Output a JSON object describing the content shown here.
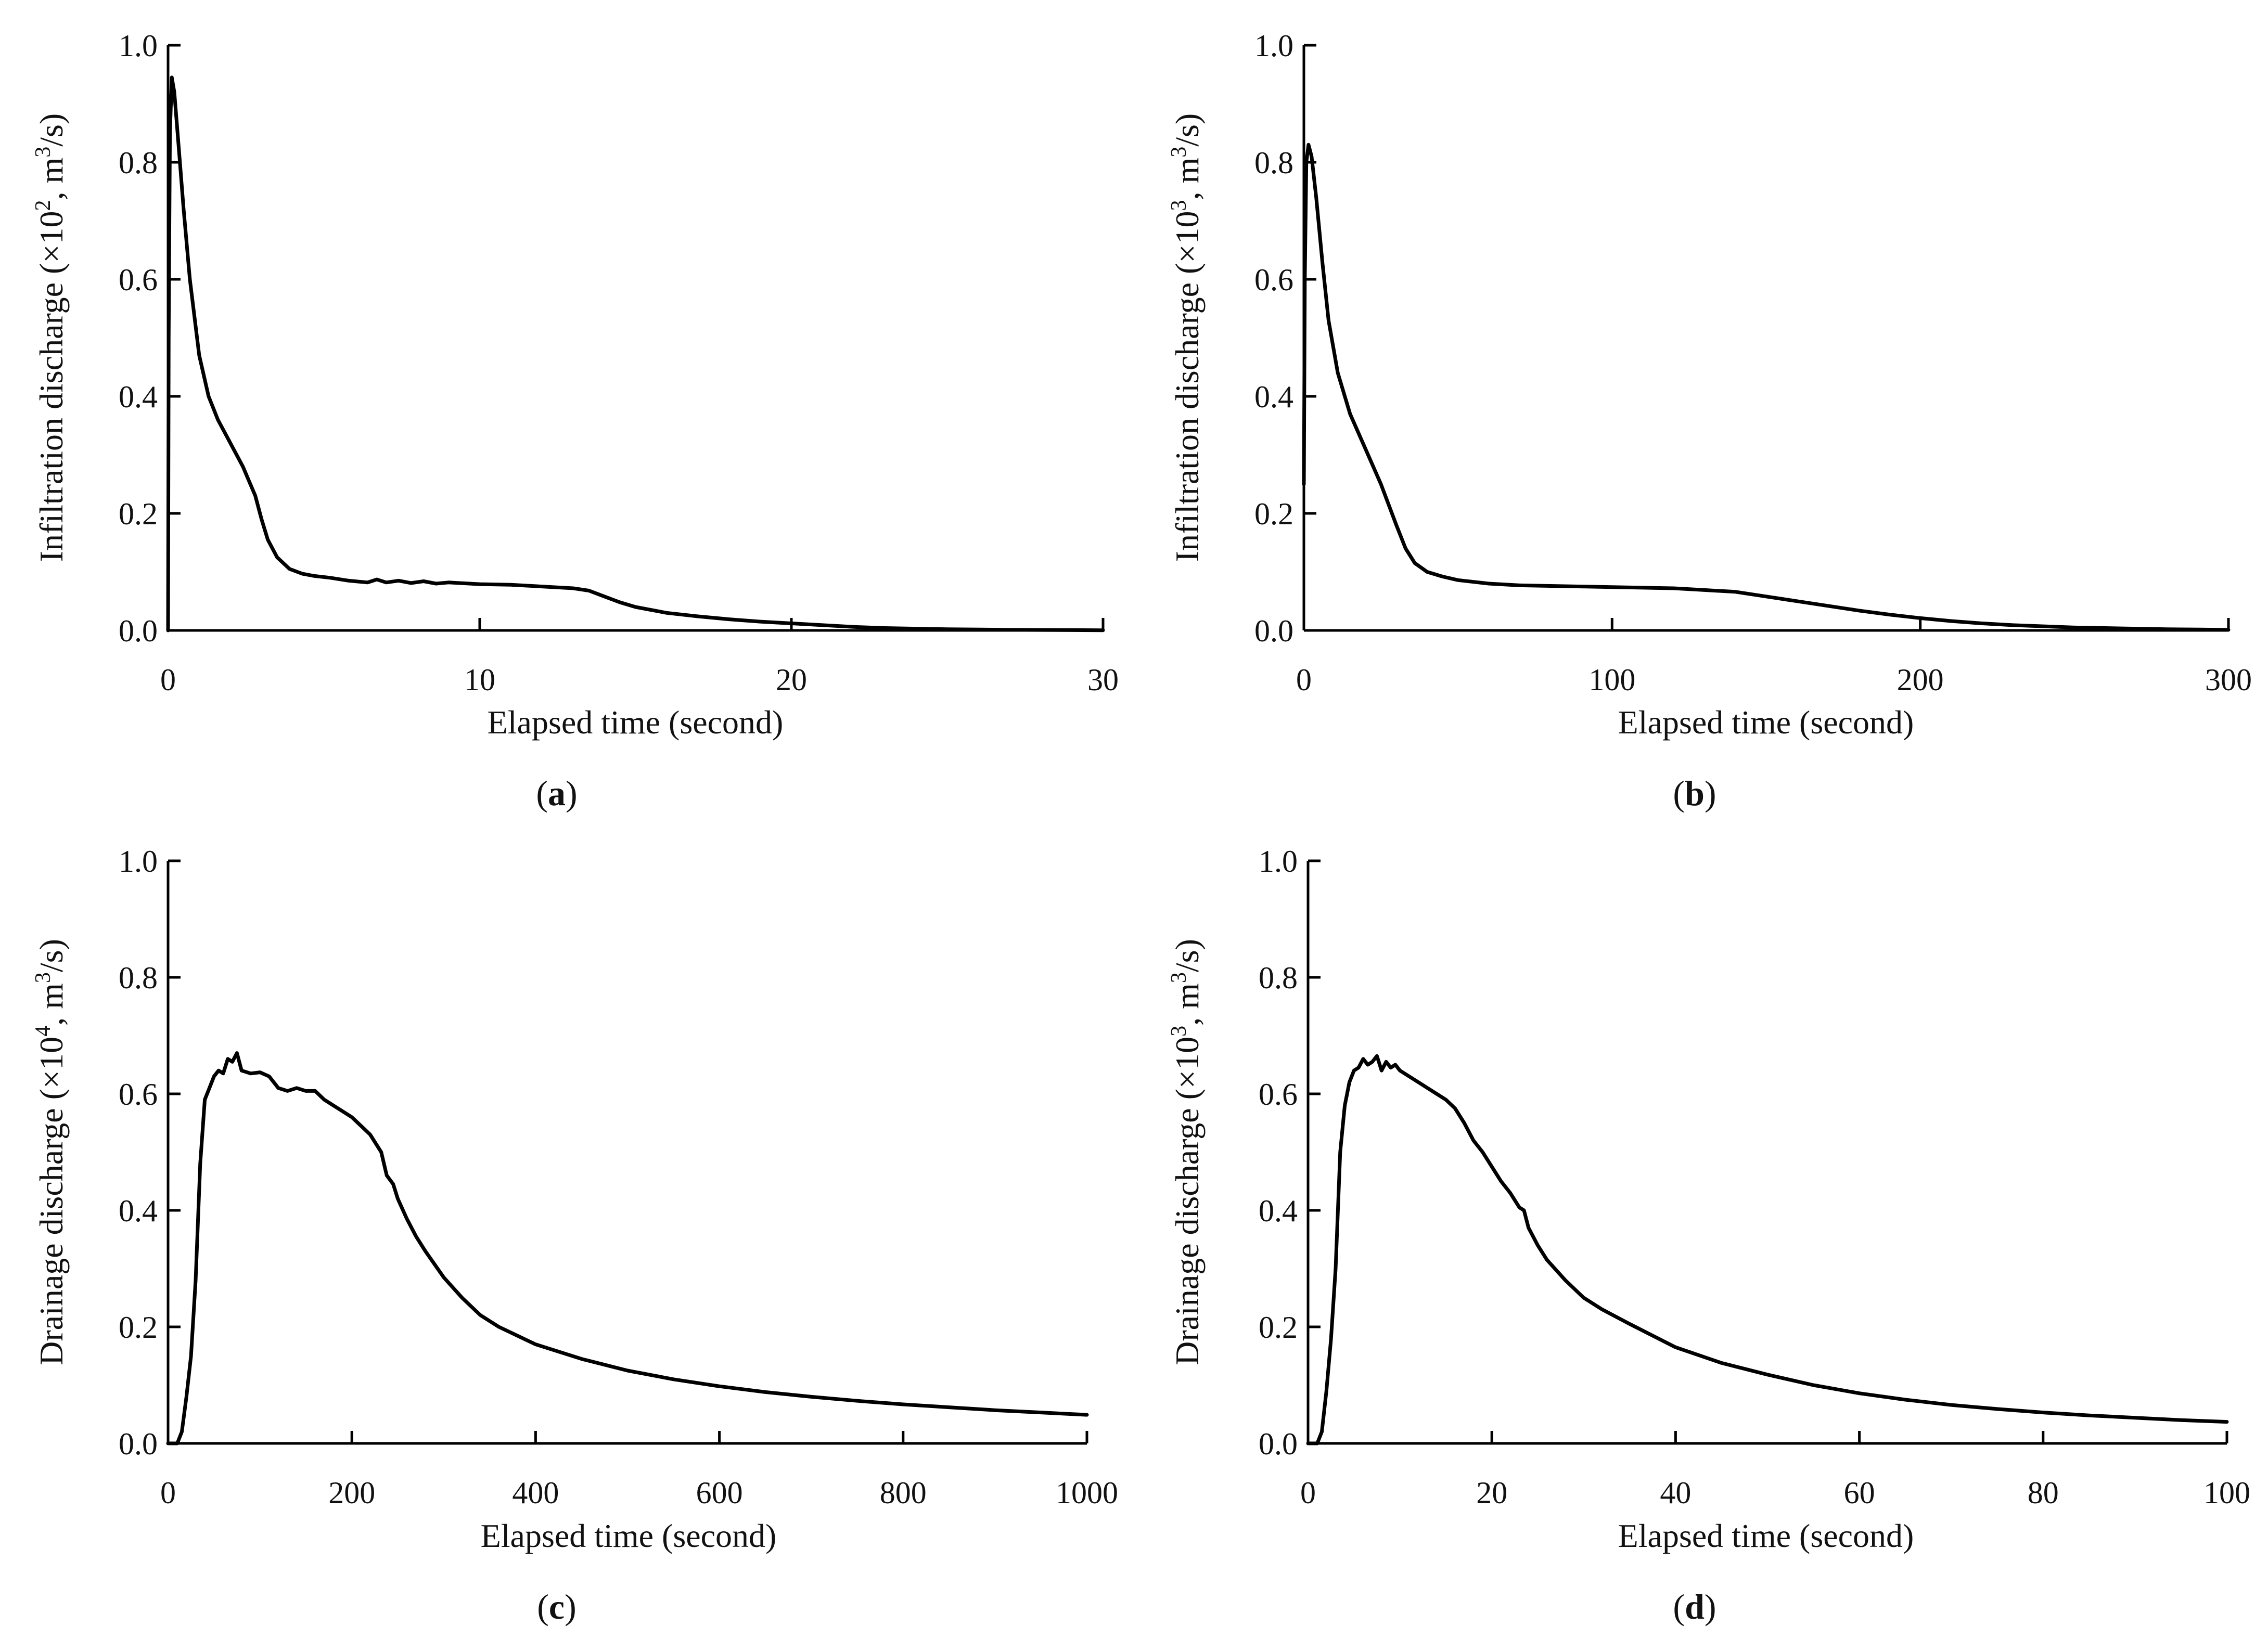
{
  "chart_data": [
    {
      "type": "line",
      "panel": "a",
      "caption": "a",
      "title": "",
      "xlabel": "Elapsed time (second)",
      "ylabel": "Infiltration discharge (×10², m³/s)",
      "ylabel_parts": {
        "pre": "Infiltration discharge (×10",
        "exp1": "2",
        "mid": ", m",
        "exp2": "3",
        "post": "/s)"
      },
      "xlim": [
        0,
        30
      ],
      "ylim": [
        0,
        1.0
      ],
      "xticks": [
        0,
        10,
        20,
        30
      ],
      "yticks": [
        "0.0",
        "0.2",
        "0.4",
        "0.6",
        "0.8",
        "1.0"
      ],
      "grid": false,
      "series": [
        {
          "name": "Infiltration discharge",
          "x": [
            0,
            0.02,
            0.06,
            0.12,
            0.2,
            0.35,
            0.5,
            0.7,
            1.0,
            1.3,
            1.6,
            2.0,
            2.4,
            2.8,
            3.0,
            3.2,
            3.5,
            3.9,
            4.3,
            4.7,
            5.2,
            5.8,
            6.4,
            6.7,
            7.0,
            7.4,
            7.8,
            8.2,
            8.6,
            9.0,
            10.0,
            11.0,
            12.0,
            13.0,
            13.5,
            14.0,
            14.5,
            15.0,
            16.0,
            17.0,
            18.0,
            19.0,
            20.0,
            21.0,
            22.0,
            23.0,
            24.0,
            25.0,
            26.0,
            27.0,
            28.0,
            29.0,
            30.0
          ],
          "y": [
            0.0,
            0.5,
            0.85,
            0.945,
            0.92,
            0.82,
            0.72,
            0.6,
            0.47,
            0.4,
            0.36,
            0.32,
            0.28,
            0.23,
            0.19,
            0.155,
            0.125,
            0.105,
            0.097,
            0.093,
            0.09,
            0.085,
            0.082,
            0.087,
            0.082,
            0.085,
            0.081,
            0.084,
            0.08,
            0.082,
            0.079,
            0.078,
            0.075,
            0.072,
            0.068,
            0.058,
            0.048,
            0.04,
            0.03,
            0.024,
            0.019,
            0.015,
            0.012,
            0.009,
            0.006,
            0.004,
            0.003,
            0.002,
            0.0015,
            0.001,
            0.0008,
            0.0005,
            0.0003
          ]
        }
      ]
    },
    {
      "type": "line",
      "panel": "b",
      "caption": "b",
      "title": "",
      "xlabel": "Elapsed time (second)",
      "ylabel": "Infiltration discharge (×10³, m³/s)",
      "ylabel_parts": {
        "pre": "Infiltration discharge (×10",
        "exp1": "3",
        "mid": ", m",
        "exp2": "3",
        "post": "/s)"
      },
      "xlim": [
        0,
        300
      ],
      "ylim": [
        0,
        1.0
      ],
      "xticks": [
        0,
        100,
        200,
        300
      ],
      "yticks": [
        "0.0",
        "0.2",
        "0.4",
        "0.6",
        "0.8",
        "1.0"
      ],
      "grid": false,
      "series": [
        {
          "name": "Infiltration discharge",
          "x": [
            0,
            0.3,
            0.8,
            1.5,
            2.5,
            4,
            6,
            8,
            11,
            15,
            20,
            25,
            30,
            33,
            36,
            40,
            45,
            50,
            60,
            70,
            80,
            90,
            100,
            110,
            120,
            130,
            140,
            150,
            160,
            170,
            180,
            190,
            200,
            210,
            220,
            230,
            240,
            250,
            260,
            270,
            280,
            290,
            300
          ],
          "y": [
            0.25,
            0.6,
            0.8,
            0.83,
            0.81,
            0.74,
            0.63,
            0.53,
            0.44,
            0.37,
            0.31,
            0.25,
            0.18,
            0.14,
            0.115,
            0.1,
            0.092,
            0.086,
            0.08,
            0.077,
            0.076,
            0.075,
            0.074,
            0.073,
            0.072,
            0.069,
            0.066,
            0.058,
            0.05,
            0.042,
            0.034,
            0.027,
            0.021,
            0.016,
            0.012,
            0.009,
            0.007,
            0.005,
            0.004,
            0.003,
            0.002,
            0.0015,
            0.001
          ]
        }
      ]
    },
    {
      "type": "line",
      "panel": "c",
      "caption": "c",
      "title": "",
      "xlabel": "Elapsed time (second)",
      "ylabel": "Drainage discharge (×10⁴, m³/s)",
      "ylabel_parts": {
        "pre": "Drainage discharge (×10",
        "exp1": "4",
        "mid": ", m",
        "exp2": "3",
        "post": "/s)"
      },
      "xlim": [
        0,
        1000
      ],
      "ylim": [
        0,
        1.0
      ],
      "xticks": [
        0,
        200,
        400,
        600,
        800,
        1000
      ],
      "yticks": [
        "0.0",
        "0.2",
        "0.4",
        "0.6",
        "0.8",
        "1.0"
      ],
      "grid": false,
      "series": [
        {
          "name": "Drainage discharge",
          "x": [
            0,
            10,
            15,
            20,
            25,
            30,
            35,
            40,
            45,
            50,
            55,
            60,
            65,
            70,
            75,
            80,
            90,
            100,
            110,
            120,
            130,
            140,
            150,
            160,
            170,
            180,
            190,
            200,
            210,
            220,
            228,
            232,
            238,
            245,
            250,
            260,
            270,
            280,
            300,
            320,
            340,
            360,
            380,
            400,
            450,
            500,
            550,
            600,
            650,
            700,
            750,
            800,
            850,
            900,
            950,
            1000
          ],
          "y": [
            0,
            0.0,
            0.02,
            0.08,
            0.15,
            0.28,
            0.48,
            0.59,
            0.61,
            0.63,
            0.64,
            0.635,
            0.66,
            0.655,
            0.67,
            0.64,
            0.635,
            0.637,
            0.63,
            0.61,
            0.605,
            0.61,
            0.605,
            0.605,
            0.59,
            0.58,
            0.57,
            0.56,
            0.545,
            0.53,
            0.51,
            0.5,
            0.46,
            0.445,
            0.42,
            0.385,
            0.355,
            0.33,
            0.285,
            0.25,
            0.22,
            0.2,
            0.185,
            0.17,
            0.145,
            0.125,
            0.11,
            0.098,
            0.088,
            0.08,
            0.073,
            0.067,
            0.062,
            0.057,
            0.053,
            0.049
          ]
        }
      ]
    },
    {
      "type": "line",
      "panel": "d",
      "caption": "d",
      "title": "",
      "xlabel": "Elapsed time (second)",
      "ylabel": "Drainage discharge (×10³, m³/s)",
      "ylabel_parts": {
        "pre": "Drainage discharge (×10",
        "exp1": "3",
        "mid": ", m",
        "exp2": "3",
        "post": "/s)"
      },
      "xlim": [
        0,
        100
      ],
      "ylim": [
        0,
        1.0
      ],
      "xticks": [
        0,
        20,
        40,
        60,
        80,
        100
      ],
      "yticks": [
        "0.0",
        "0.2",
        "0.4",
        "0.6",
        "0.8",
        "1.0"
      ],
      "grid": false,
      "series": [
        {
          "name": "Drainage discharge",
          "x": [
            0,
            1.0,
            1.5,
            2.0,
            2.5,
            3.0,
            3.5,
            4.0,
            4.5,
            5.0,
            5.5,
            6.0,
            6.5,
            7.0,
            7.5,
            8.0,
            8.5,
            9.0,
            9.5,
            10.0,
            11.0,
            12.0,
            13.0,
            14.0,
            15.0,
            16.0,
            17.0,
            18.0,
            19.0,
            20.0,
            21.0,
            22.0,
            23.0,
            23.5,
            24.0,
            25.0,
            26.0,
            28.0,
            30.0,
            32.0,
            35.0,
            40.0,
            45.0,
            50.0,
            55.0,
            60.0,
            65.0,
            70.0,
            75.0,
            80.0,
            85.0,
            90.0,
            95.0,
            100.0
          ],
          "y": [
            0,
            0.0,
            0.02,
            0.09,
            0.18,
            0.3,
            0.5,
            0.58,
            0.62,
            0.64,
            0.645,
            0.66,
            0.65,
            0.655,
            0.665,
            0.64,
            0.655,
            0.645,
            0.65,
            0.64,
            0.63,
            0.62,
            0.61,
            0.6,
            0.59,
            0.575,
            0.55,
            0.52,
            0.5,
            0.475,
            0.45,
            0.43,
            0.405,
            0.4,
            0.37,
            0.34,
            0.315,
            0.28,
            0.25,
            0.23,
            0.205,
            0.165,
            0.138,
            0.118,
            0.1,
            0.086,
            0.075,
            0.066,
            0.059,
            0.053,
            0.048,
            0.044,
            0.04,
            0.037
          ]
        }
      ]
    }
  ]
}
